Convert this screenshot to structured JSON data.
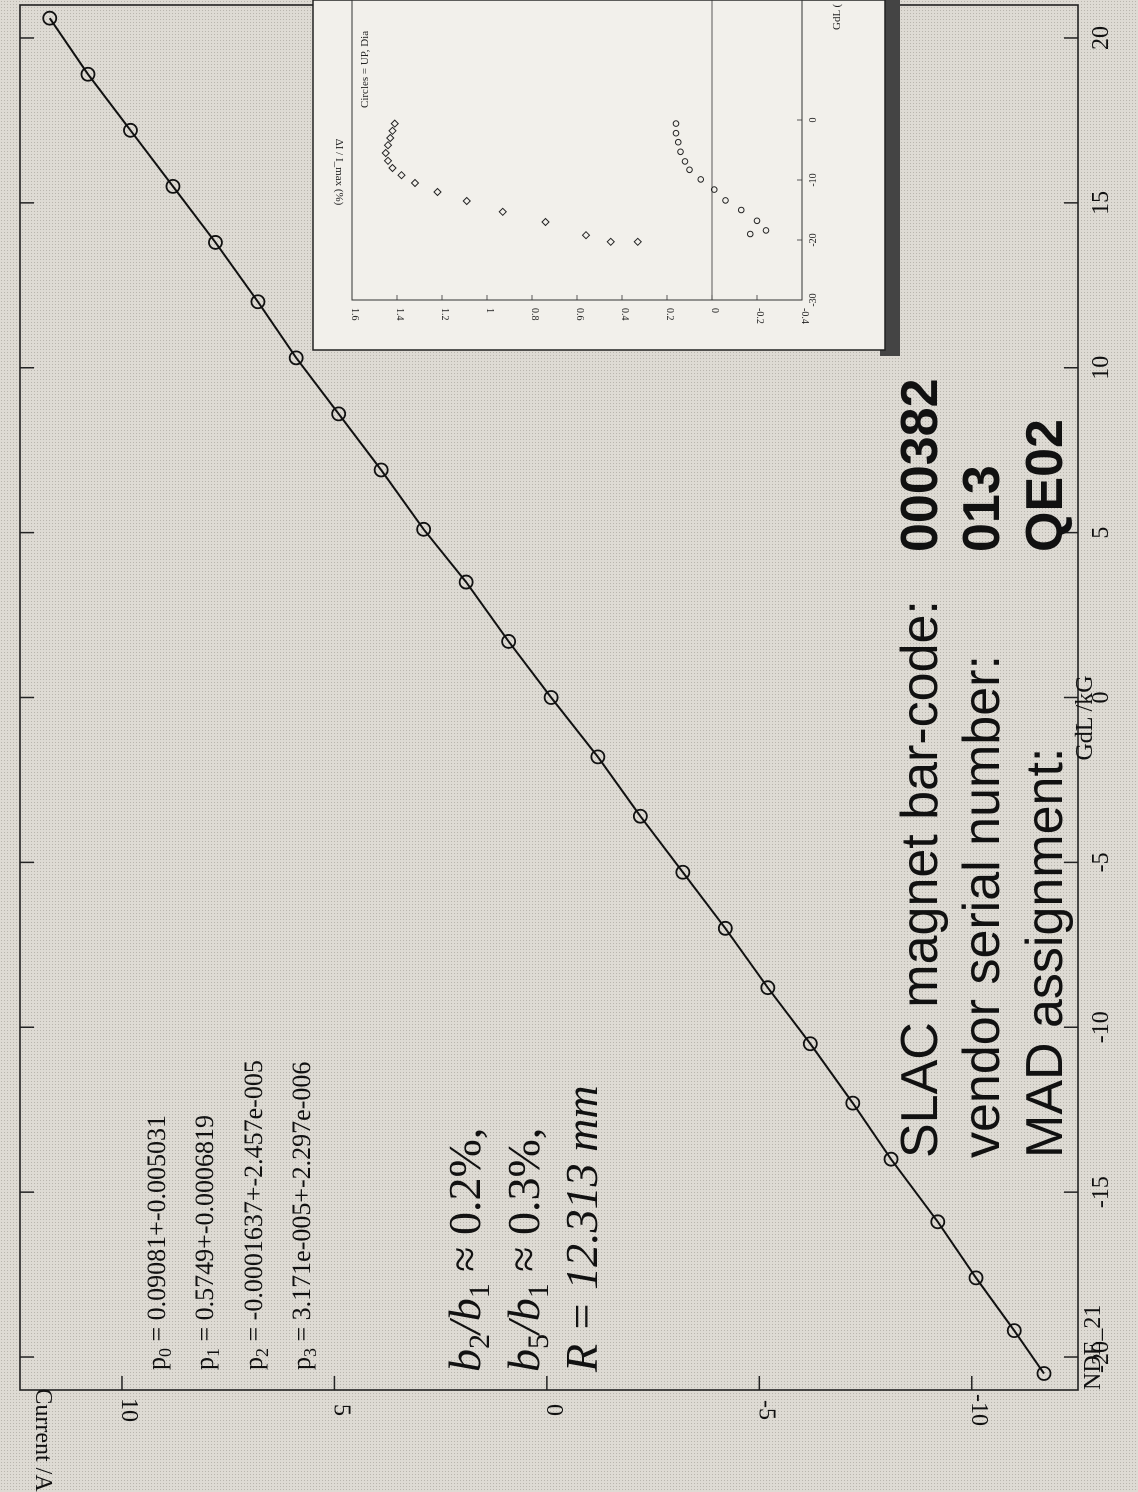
{
  "chart_data": [
    {
      "type": "scatter",
      "title": "",
      "xlabel": "GdL /kG",
      "ylabel": "Current /A",
      "xlim": [
        -21,
        21
      ],
      "ylim": [
        -12.5,
        12.4
      ],
      "x_ticks": [
        -20,
        -15,
        -10,
        -5,
        0,
        5,
        10,
        15,
        20
      ],
      "y_ticks": [
        -10,
        -5,
        0,
        5,
        10
      ],
      "grid": false,
      "fit_line": true,
      "points": [
        {
          "x": -20.5,
          "y": -11.7
        },
        {
          "x": -19.2,
          "y": -11.0
        },
        {
          "x": -17.6,
          "y": -10.1
        },
        {
          "x": -15.9,
          "y": -9.2
        },
        {
          "x": -14.0,
          "y": -8.1
        },
        {
          "x": -12.3,
          "y": -7.2
        },
        {
          "x": -10.5,
          "y": -6.2
        },
        {
          "x": -8.8,
          "y": -5.2
        },
        {
          "x": -7.0,
          "y": -4.2
        },
        {
          "x": -5.3,
          "y": -3.2
        },
        {
          "x": -3.6,
          "y": -2.2
        },
        {
          "x": -1.8,
          "y": -1.2
        },
        {
          "x": 0.0,
          "y": -0.1
        },
        {
          "x": 1.7,
          "y": 0.9
        },
        {
          "x": 3.5,
          "y": 1.9
        },
        {
          "x": 5.1,
          "y": 2.9
        },
        {
          "x": 6.9,
          "y": 3.9
        },
        {
          "x": 8.6,
          "y": 4.9
        },
        {
          "x": 10.3,
          "y": 5.9
        },
        {
          "x": 12.0,
          "y": 6.8
        },
        {
          "x": 13.8,
          "y": 7.8
        },
        {
          "x": 15.5,
          "y": 8.8
        },
        {
          "x": 17.2,
          "y": 9.8
        },
        {
          "x": 18.9,
          "y": 10.8
        },
        {
          "x": 20.6,
          "y": 11.7
        }
      ]
    },
    {
      "type": "scatter",
      "title": "",
      "xlabel": "GdL (",
      "ylabel": "ΔI / I_max (%)",
      "xlim": [
        -30,
        20
      ],
      "ylim": [
        -0.4,
        1.6
      ],
      "x_ticks": [
        -30,
        -20,
        -10,
        0
      ],
      "y_ticks": [
        -0.4,
        -0.2,
        0,
        0.2,
        0.4,
        0.6,
        0.8,
        1,
        1.2,
        1.4,
        1.6
      ],
      "grid": false,
      "series": [
        {
          "marker": "diamond",
          "points": [
            {
              "x": -20.3,
              "y": 0.33
            },
            {
              "x": -20.3,
              "y": 0.45
            },
            {
              "x": -19.2,
              "y": 0.56
            },
            {
              "x": -17.0,
              "y": 0.74
            },
            {
              "x": -15.3,
              "y": 0.93
            },
            {
              "x": -13.5,
              "y": 1.09
            },
            {
              "x": -12.0,
              "y": 1.22
            },
            {
              "x": -10.5,
              "y": 1.32
            },
            {
              "x": -9.2,
              "y": 1.38
            },
            {
              "x": -8.0,
              "y": 1.42
            },
            {
              "x": -6.8,
              "y": 1.44
            },
            {
              "x": -5.5,
              "y": 1.45
            },
            {
              "x": -4.2,
              "y": 1.44
            },
            {
              "x": -3.0,
              "y": 1.43
            },
            {
              "x": -1.8,
              "y": 1.42
            },
            {
              "x": -0.6,
              "y": 1.41
            }
          ]
        },
        {
          "marker": "circle",
          "points": [
            {
              "x": -19.0,
              "y": -0.17
            },
            {
              "x": -18.4,
              "y": -0.24
            },
            {
              "x": -16.8,
              "y": -0.2
            },
            {
              "x": -15.0,
              "y": -0.13
            },
            {
              "x": -13.4,
              "y": -0.06
            },
            {
              "x": -11.6,
              "y": -0.01
            },
            {
              "x": -9.9,
              "y": 0.05
            },
            {
              "x": -8.3,
              "y": 0.1
            },
            {
              "x": -6.9,
              "y": 0.12
            },
            {
              "x": -5.3,
              "y": 0.14
            },
            {
              "x": -3.7,
              "y": 0.15
            },
            {
              "x": -2.2,
              "y": 0.16
            },
            {
              "x": -0.6,
              "y": 0.16
            }
          ]
        }
      ]
    }
  ],
  "fit_params": [
    {
      "sym": "p",
      "sub": "0",
      "text": " = 0.09081+-0.005031"
    },
    {
      "sym": "p",
      "sub": "1",
      "text": " =  0.5749+-0.0006819"
    },
    {
      "sym": "p",
      "sub": "2",
      "text": " = -0.0001637+-2.457e-005"
    },
    {
      "sym": "p",
      "sub": "3",
      "text": " = 3.171e-005+-2.297e-006"
    }
  ],
  "harmonics": {
    "line1": {
      "a": "b",
      "as": "2",
      "b": "/b",
      "bs": "1",
      "rest": " ≈ 0.2%,"
    },
    "line2": {
      "a": "b",
      "as": "5",
      "b": "/b",
      "bs": "1",
      "rest": " ≈ 0.3%,"
    },
    "line3": "R = 12.313 mm"
  },
  "labels": {
    "barcode_label": "SLAC magnet bar-code:",
    "barcode_value": "000382",
    "serial_label": "vendor serial number:",
    "serial_value": "013",
    "mad_label": "MAD assignment:",
    "mad_value": "QE02"
  },
  "inset_legend_text": "Circles = UP, Dia",
  "footer_fragment": "NDE_21"
}
